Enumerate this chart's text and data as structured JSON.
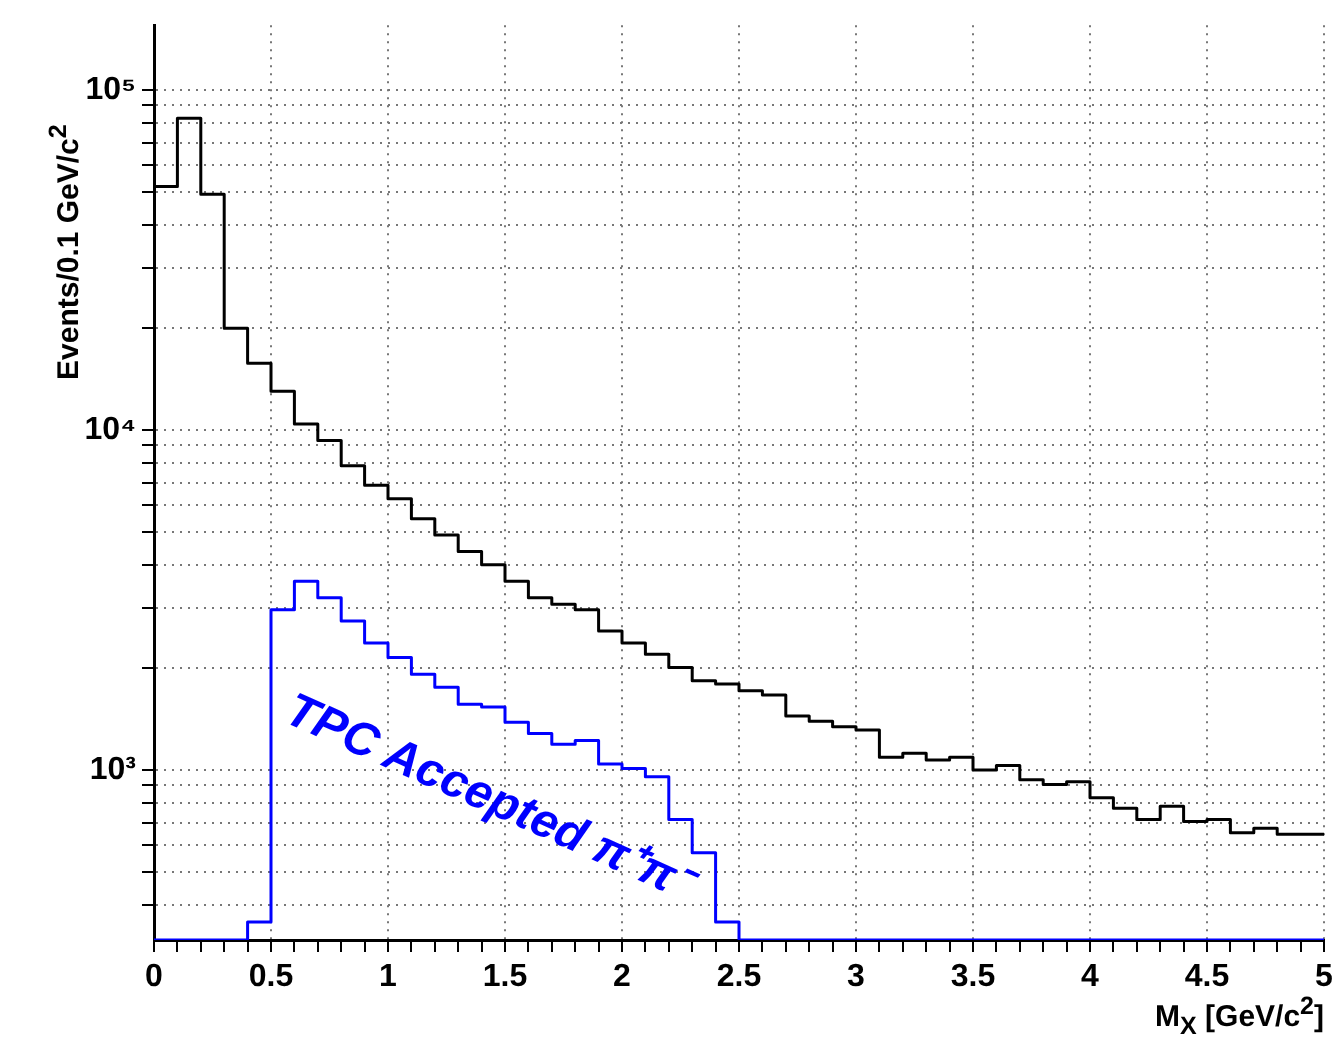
{
  "chart_data": {
    "type": "histogram",
    "xlabel": "M$_{X}$ [GeV/c$^{2}$]",
    "ylabel": "Events/0.1 GeV/c$^{2}$",
    "bins": [
      0,
      0.1,
      0.2,
      0.3,
      0.4,
      0.5,
      0.6,
      0.7,
      0.8,
      0.9,
      1.0,
      1.1,
      1.2,
      1.3,
      1.4,
      1.5,
      1.6,
      1.7,
      1.8,
      1.9,
      2.0,
      2.1,
      2.2,
      2.3,
      2.4,
      2.5,
      2.6,
      2.7,
      2.8,
      2.9,
      3.0,
      3.1,
      3.2,
      3.3,
      3.4,
      3.5,
      3.6,
      3.7,
      3.8,
      3.9,
      4.0,
      4.1,
      4.2,
      4.3,
      4.4,
      4.5,
      4.6,
      4.7,
      4.8,
      4.9,
      5.0
    ],
    "series": [
      {
        "color": "#000000",
        "values": [
          52000,
          82500,
          49300,
          19900,
          15700,
          13000,
          10400,
          9300,
          7850,
          6870,
          6270,
          5480,
          4910,
          4390,
          4010,
          3590,
          3210,
          3070,
          2960,
          2560,
          2360,
          2190,
          2000,
          1830,
          1790,
          1710,
          1660,
          1440,
          1390,
          1340,
          1310,
          1090,
          1120,
          1070,
          1090,
          1000,
          1030,
          935,
          906,
          923,
          828,
          771,
          715,
          782,
          705,
          715,
          653,
          673,
          647,
          647
        ]
      },
      {
        "name": "TPC Accepted π⁺π⁻",
        "color": "#0000ff",
        "values": [
          null,
          null,
          null,
          null,
          357,
          2960,
          3590,
          3210,
          2740,
          2360,
          2140,
          1910,
          1750,
          1560,
          1530,
          1380,
          1280,
          1190,
          1220,
          1040,
          1010,
          955,
          715,
          571,
          357,
          null,
          null,
          null,
          null,
          null,
          null,
          null,
          null,
          null,
          null,
          null,
          null,
          null,
          null,
          null,
          null,
          null,
          null,
          null,
          null,
          null,
          null,
          null,
          null,
          null
        ]
      }
    ],
    "xlim": [
      0,
      5
    ],
    "xticks": [
      0,
      {
        "value": 0.1,
        "label": null
      },
      {
        "value": 0.2,
        "label": null
      },
      {
        "value": 0.3,
        "label": null
      },
      {
        "value": 0.4,
        "label": null
      },
      0.5,
      {
        "value": 0.6,
        "label": null
      },
      {
        "value": 0.7,
        "label": null
      },
      {
        "value": 0.8,
        "label": null
      },
      {
        "value": 0.9,
        "label": null
      },
      1,
      {
        "value": 1.1,
        "label": null
      },
      {
        "value": 1.2,
        "label": null
      },
      {
        "value": 1.3,
        "label": null
      },
      {
        "value": 1.4,
        "label": null
      },
      1.5,
      {
        "value": 1.6,
        "label": null
      },
      {
        "value": 1.7,
        "label": null
      },
      {
        "value": 1.8,
        "label": null
      },
      {
        "value": 1.9,
        "label": null
      },
      2,
      {
        "value": 2.1,
        "label": null
      },
      {
        "value": 2.2,
        "label": null
      },
      {
        "value": 2.3,
        "label": null
      },
      {
        "value": 2.4,
        "label": null
      },
      2.5,
      {
        "value": 2.6,
        "label": null
      },
      {
        "value": 2.7,
        "label": null
      },
      {
        "value": 2.8,
        "label": null
      },
      {
        "value": 2.9,
        "label": null
      },
      3,
      {
        "value": 3.1,
        "label": null
      },
      {
        "value": 3.2,
        "label": null
      },
      {
        "value": 3.3,
        "label": null
      },
      {
        "value": 3.4,
        "label": null
      },
      3.5,
      {
        "value": 3.6,
        "label": null
      },
      {
        "value": 3.7,
        "label": null
      },
      {
        "value": 3.8,
        "label": null
      },
      {
        "value": 3.9,
        "label": null
      },
      4,
      {
        "value": 4.1,
        "label": null
      },
      {
        "value": 4.2,
        "label": null
      },
      {
        "value": 4.3,
        "label": null
      },
      {
        "value": 4.4,
        "label": null
      },
      4.5,
      {
        "value": 4.6,
        "label": null
      },
      {
        "value": 4.7,
        "label": null
      },
      {
        "value": 4.8,
        "label": null
      },
      {
        "value": 4.9,
        "label": null
      },
      5
    ],
    "ylim": [
      316,
      155000
    ],
    "yticks": [
      {
        "value": 400,
        "label": null
      },
      {
        "value": 500,
        "label": null
      },
      {
        "value": 600,
        "label": null
      },
      {
        "value": 700,
        "label": null
      },
      {
        "value": 800,
        "label": null
      },
      {
        "value": 900,
        "label": null
      },
      {
        "value": 1000,
        "label": "10³"
      },
      {
        "value": 2000,
        "label": null
      },
      {
        "value": 3000,
        "label": null
      },
      {
        "value": 4000,
        "label": null
      },
      {
        "value": 5000,
        "label": null
      },
      {
        "value": 6000,
        "label": null
      },
      {
        "value": 7000,
        "label": null
      },
      {
        "value": 8000,
        "label": null
      },
      {
        "value": 9000,
        "label": null
      },
      {
        "value": 10000,
        "label": "10⁴"
      },
      {
        "value": 20000,
        "label": null
      },
      {
        "value": 30000,
        "label": null
      },
      {
        "value": 40000,
        "label": null
      },
      {
        "value": 50000,
        "label": null
      },
      {
        "value": 60000,
        "label": null
      },
      {
        "value": 70000,
        "label": null
      },
      {
        "value": 80000,
        "label": null
      },
      {
        "value": 90000,
        "label": null
      },
      {
        "value": 100000,
        "label": "10⁵"
      }
    ],
    "log": "y",
    "grid": true
  }
}
